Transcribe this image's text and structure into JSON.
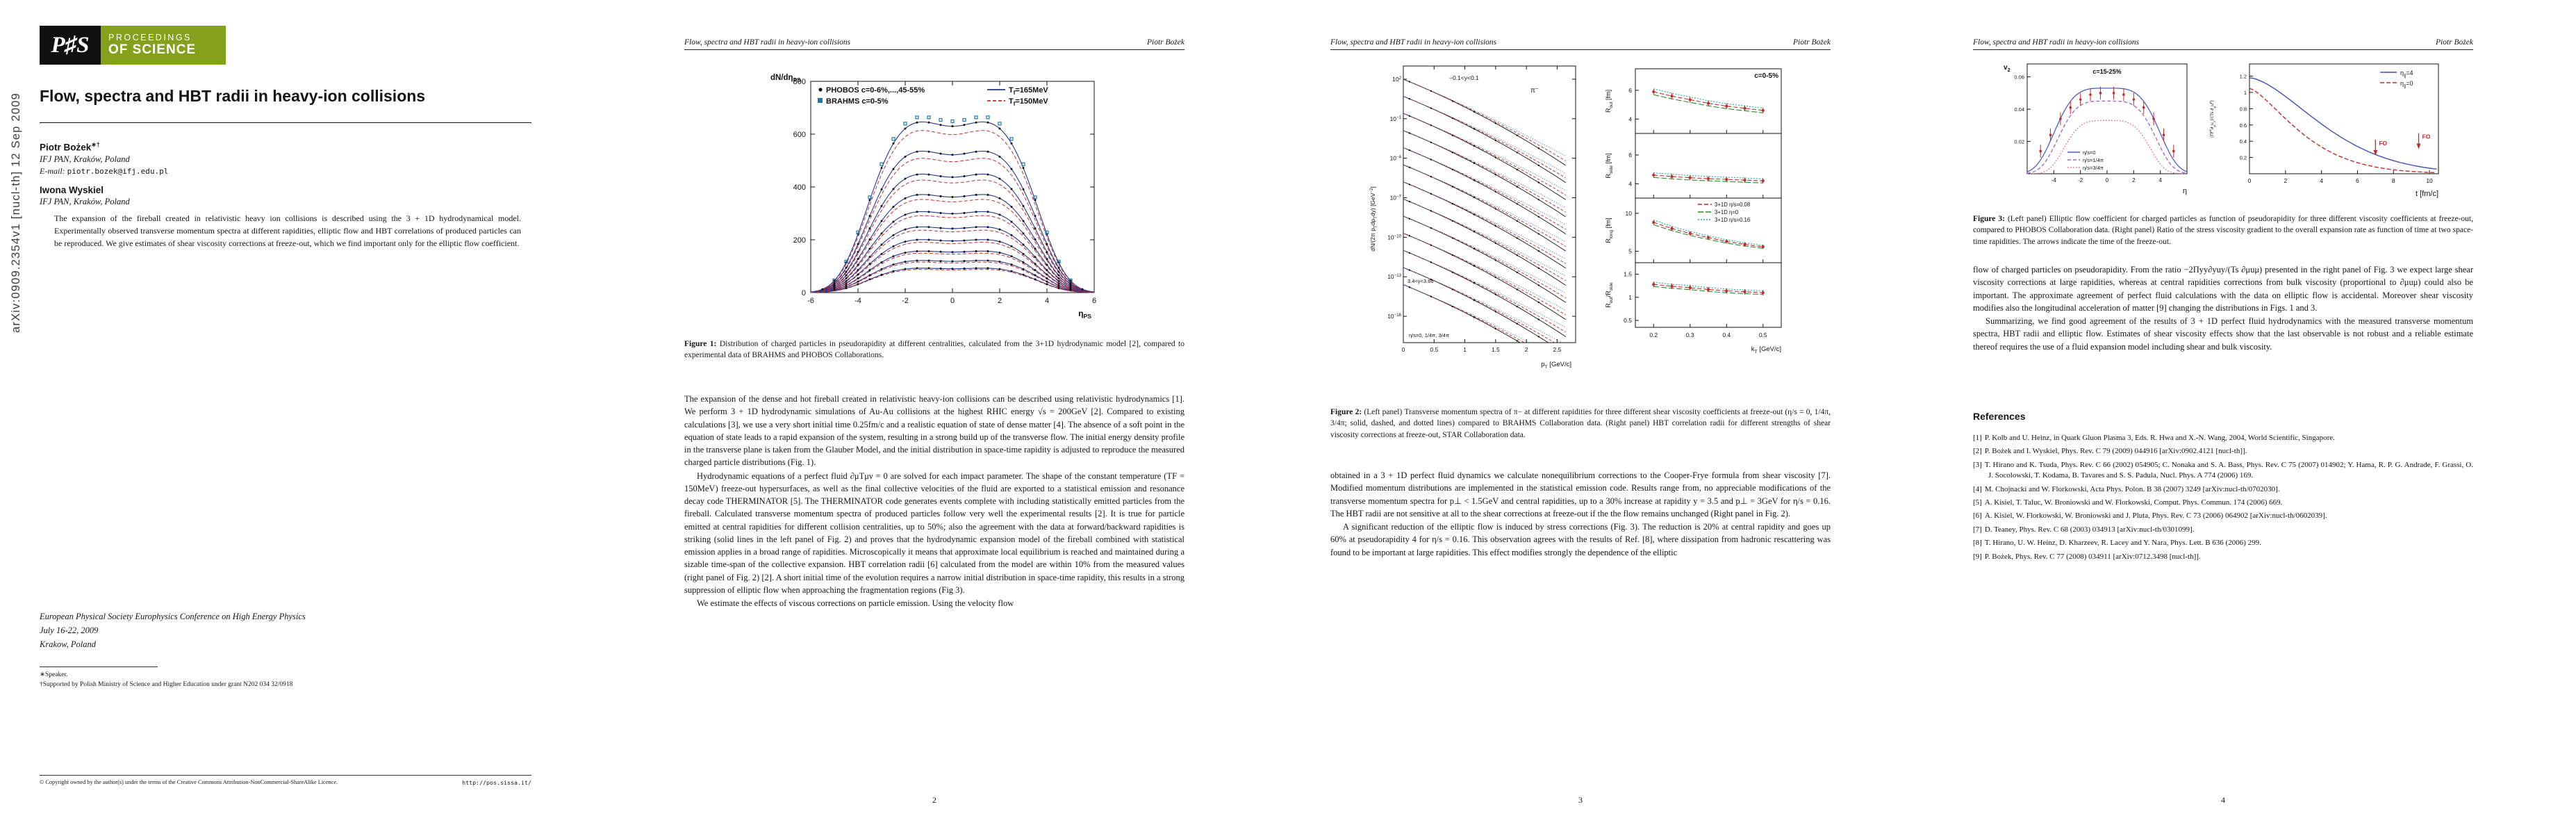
{
  "logo": {
    "mark": "P♯S",
    "line1": "PROCEEDINGS",
    "line2": "OF SCIENCE"
  },
  "running_head": {
    "title": "Flow, spectra and HBT radii in heavy-ion collisions",
    "author": "Piotr Bożek"
  },
  "page1": {
    "arxiv_stamp": "arXiv:0909.2354v1  [nucl-th]  12 Sep 2009",
    "title": "Flow, spectra and HBT radii in heavy-ion collisions",
    "authors": [
      {
        "name": "Piotr Bożek",
        "marks": "∗†",
        "affiliation": "IFJ PAN, Kraków, Poland",
        "email_label": "E-mail:",
        "email": "piotr.bozek@ifj.edu.pl"
      },
      {
        "name": "Iwona Wyskiel",
        "marks": "",
        "affiliation": "IFJ PAN, Kraków, Poland"
      }
    ],
    "abstract": "The expansion of the fireball created in relativistic heavy ion collisions is described using the 3 + 1D hydrodynamical model. Experimentally observed transverse momentum spectra at different rapidities, elliptic flow and HBT correlations of produced particles can be reproduced. We give estimates of shear viscosity corrections at freeze-out, which we find important only for the elliptic flow coefficient.",
    "conference": {
      "name": "European Physical Society Europhysics Conference on High Energy Physics",
      "dates": "July 16-22, 2009",
      "place": "Krakow, Poland"
    },
    "footnotes": [
      "∗Speaker.",
      "†Supported by Polish Ministry of Science and Higher Education under grant N202 034 32/0918"
    ],
    "footer": {
      "copyright": "© Copyright owned by the author(s) under the terms of the Creative Commons Attribution-NonCommercial-ShareAlike Licence.",
      "url": "http://pos.sissa.it/"
    }
  },
  "page2": {
    "figure_caption_label": "Figure 1:",
    "figure_caption": " Distribution of charged particles in pseudorapidity at different centralities, calculated from the 3+1D hydrodynamic model [2], compared to experimental data of BRAHMS and PHOBOS Collaborations.",
    "paragraphs": [
      "The expansion of the dense and hot fireball created in relativistic heavy-ion collisions can be described using relativistic hydrodynamics [1]. We perform 3 + 1D hydrodynamic simulations of Au-Au collisions at the highest RHIC energy √s = 200GeV [2]. Compared to existing calculations [3], we use a very short initial time 0.25fm/c and a realistic equation of state of dense matter [4]. The absence of a soft point in the equation of state leads to a rapid expansion of the system, resulting in a strong build up of the transverse flow. The initial energy density profile in the transverse plane is taken from the Glauber Model, and the initial distribution in space-time rapidity is adjusted to reproduce the measured charged particle distributions (Fig. 1).",
      "Hydrodynamic equations of a perfect fluid ∂μTμν = 0 are solved for each impact parameter. The shape of the constant temperature (TF = 150MeV) freeze-out hypersurfaces, as well as the final collective velocities of the fluid are exported to a statistical emission and resonance decay code THERMINATOR [5]. The THERMINATOR code generates events complete with including statistically emitted particles from the fireball. Calculated transverse momentum spectra of produced particles follow very well the experimental results [2]. It is true for particle emitted at central rapidities for different collision centralities, up to 50%; also the agreement with the data at forward/backward rapidities is striking (solid lines in the left panel of Fig. 2) and proves that the hydrodynamic expansion model of the fireball combined with statistical emission applies in a broad range of rapidities. Microscopically it means that approximate local equilibrium is reached and maintained during a sizable time-span of the collective expansion. HBT correlation radii [6] calculated from the model are within 10% from the measured values (right panel of Fig. 2) [2]. A short initial time of the evolution requires a narrow initial distribution in space-time rapidity, this results in a strong suppression of elliptic flow when approaching the fragmentation regions (Fig 3).",
      "We estimate the effects of viscous corrections on particle emission. Using the velocity flow"
    ],
    "page_number": "2"
  },
  "page3": {
    "figure_caption_label": "Figure 2:",
    "figure_caption": " (Left panel) Transverse momentum spectra of π− at different rapidities for three different shear viscosity coefficients at freeze-out (η/s = 0, 1/4π, 3/4π; solid, dashed, and dotted lines) compared to BRAHMS Collaboration data. (Right panel) HBT correlation radii for different strengths of shear viscosity corrections at freeze-out, STAR Collaboration data.",
    "paragraphs": [
      "obtained in a 3 + 1D perfect fluid dynamics we calculate nonequilibrium corrections to the Cooper-Frye formula from shear viscosity [7]. Modified momentum distributions are implemented in the statistical emission code. Results range from, no appreciable modifications of the transverse momentum spectra for p⊥ < 1.5GeV and central rapidities, up to a 30% increase at rapidity y = 3.5 and p⊥ = 3GeV for η/s = 0.16. The HBT radii are not sensitive at all to the shear corrections at freeze-out if the the flow remains unchanged (Right panel in Fig. 2).",
      "A significant reduction of the elliptic flow is induced by stress corrections (Fig. 3). The reduction is 20% at central rapidity and goes up 60% at pseudorapidity 4 for η/s = 0.16. This observation agrees with the results of Ref. [8], where dissipation from hadronic rescattering was found to be important at large rapidities. This effect modifies strongly the dependence of the elliptic"
    ],
    "page_number": "3"
  },
  "page4": {
    "figure_caption_label": "Figure 3:",
    "figure_caption": " (Left panel) Elliptic flow coefficient for charged particles as function of pseudorapidity for three different viscosity coefficients at freeze-out, compared to PHOBOS Collaboration data. (Right panel) Ratio of the stress viscosity gradient to the overall expansion rate as function of time at two space-time rapidities. The arrows indicate the time of the freeze-out.",
    "paragraphs": [
      "flow of charged particles on pseudorapidity. From the ratio −2Πyy∂yuy/(Ts ∂μuμ) presented in the right panel of Fig. 3 we expect large shear viscosity corrections at large rapidities, whereas at central rapidities corrections from bulk viscosity (proportional to ∂μuμ) could also be important. The approximate agreement of perfect fluid calculations with the data on elliptic flow is accidental. Moreover shear viscosity modifies also the longitudinal acceleration of matter [9] changing the distributions in Figs. 1 and 3.",
      "Summarizing, we find good agreement of the results of 3 + 1D perfect fluid hydrodynamics with the measured transverse momentum spectra, HBT radii and elliptic flow. Estimates of shear viscosity effects show that the last observable is not robust and a reliable estimate thereof requires the use of a fluid expansion model including shear and bulk viscosity."
    ],
    "references_heading": "References",
    "references": [
      {
        "label": "[1]",
        "text": "P. Kolb and U. Heinz, in Quark Gluon Plasma 3, Eds. R. Hwa and X.-N. Wang, 2004, World Scientific, Singapore."
      },
      {
        "label": "[2]",
        "text": "P. Bożek and I. Wyskiel, Phys. Rev. C 79 (2009) 044916 [arXiv:0902.4121 [nucl-th]]."
      },
      {
        "label": "[3]",
        "text": "T. Hirano and K. Tsuda, Phys. Rev. C 66 (2002) 054905; C. Nonaka and S. A. Bass, Phys. Rev. C 75 (2007) 014902; Y. Hama, R. P. G. Andrade, F. Grassi, O. J. Socolowski, T. Kodama, B. Tavares and S. S. Padula, Nucl. Phys. A 774 (2006) 169."
      },
      {
        "label": "[4]",
        "text": "M. Chojnacki and W. Florkowski, Acta Phys. Polon. B 38 (2007) 3249 [arXiv:nucl-th/0702030]."
      },
      {
        "label": "[5]",
        "text": "A. Kisiel, T. Taluc, W. Broniowski and W. Florkowski, Comput. Phys. Commun. 174 (2006) 669."
      },
      {
        "label": "[6]",
        "text": "A. Kisiel, W. Florkowski, W. Broniowski and J. Pluta, Phys. Rev. C 73 (2006) 064902 [arXiv:nucl-th/0602039]."
      },
      {
        "label": "[7]",
        "text": "D. Teaney, Phys. Rev. C 68 (2003) 034913 [arXiv:nucl-th/0301099]."
      },
      {
        "label": "[8]",
        "text": "T. Hirano, U. W. Heinz, D. Kharzeev, R. Lacey and Y. Nara, Phys. Lett. B 636 (2006) 299."
      },
      {
        "label": "[9]",
        "text": "P. Bożek, Phys. Rev. C 77 (2008) 034911 [arXiv:0712.3498 [nucl-th]]."
      }
    ],
    "page_number": "4"
  },
  "chart_data": {
    "fig1": {
      "type": "line",
      "legend": [
        "PHOBOS c=0-6%,...,45-55%",
        "BRAHMS c=0-5%",
        "T_(f)=165MeV",
        "T_(f)=150MeV"
      ],
      "ylabel": "dN/dη_(PS)",
      "xlabel": "η_(PS)",
      "xlim": [
        -6,
        6
      ],
      "ylim": [
        0,
        800
      ],
      "xticks": [
        -6,
        -4,
        -2,
        0,
        2,
        4,
        6
      ],
      "yticks": [
        0,
        200,
        400,
        600,
        800
      ],
      "centrality_peaks": [
        670,
        555,
        465,
        385,
        318,
        258,
        208,
        163,
        126,
        96
      ],
      "width_param": 3.9
    },
    "fig2_spectra": {
      "type": "line-log",
      "ylabel": "dN/(2π p_(T)dp_(T)dy) [GeV^(−2)]",
      "xlabel": "p_(T) [GeV/c]",
      "xticks": [
        0,
        0.5,
        1,
        1.5,
        2,
        2.5
      ],
      "ytick_exponents": [
        2,
        -1,
        -4,
        -7,
        -10,
        -13,
        -16
      ],
      "n_rapidity_bins": 13,
      "top_intercept_exp": 2,
      "step_exp": -1.3,
      "slope": [
        -1.9,
        -0.22
      ],
      "annotations": [
        "−0.1<y<0.1",
        "π^(−)",
        "3.4<y<3.66",
        "η/s=0, 1/4π, 3/4π"
      ]
    },
    "fig2_hbt": {
      "type": "line+scatter",
      "corner_label": "c=0-5%",
      "xlabel": "k_(T) [GeV/c]",
      "xticks": [
        0.2,
        0.3,
        0.4,
        0.5
      ],
      "legend": [
        "3+1D η/s=0.08",
        "3+1D η=0",
        "3+1D η/s=0.16"
      ],
      "x": [
        0.2,
        0.25,
        0.3,
        0.35,
        0.4,
        0.45,
        0.5
      ],
      "panels": [
        {
          "label": "R_(out)  [fm]",
          "yticks": [
            4,
            6
          ],
          "ylim": [
            3,
            7.5
          ],
          "data": [
            5.9,
            5.6,
            5.35,
            5.1,
            4.9,
            4.75,
            4.6
          ],
          "err": 0.2
        },
        {
          "label": "R_(side)  [fm]",
          "yticks": [
            4,
            6
          ],
          "ylim": [
            3,
            7.5
          ],
          "data": [
            4.6,
            4.5,
            4.42,
            4.35,
            4.3,
            4.25,
            4.2
          ],
          "err": 0.18
        },
        {
          "label": "R_(long)  [fm]",
          "yticks": [
            5,
            10
          ],
          "ylim": [
            3.5,
            12
          ],
          "data": [
            8.8,
            8.0,
            7.35,
            6.8,
            6.3,
            5.9,
            5.6
          ],
          "err": 0.3
        },
        {
          "label": "R_(out)/R_(side)",
          "yticks": [
            0.5,
            1,
            1.5
          ],
          "ylim": [
            0.35,
            1.75
          ],
          "data": [
            1.28,
            1.24,
            1.21,
            1.17,
            1.14,
            1.12,
            1.1
          ],
          "err": 0.06
        }
      ]
    },
    "fig3_v2": {
      "type": "line+scatter",
      "ylabel": "v_(2)",
      "xlabel": "η",
      "corner_label": "c=15-25%",
      "xlim": [
        -6,
        6
      ],
      "ylim": [
        0,
        0.068
      ],
      "xticks": [
        -4,
        -2,
        0,
        2,
        4
      ],
      "yticks": [
        0.02,
        0.04,
        0.06
      ],
      "legend": [
        "η/s=0",
        "η/s=1/4π",
        "η/s=3/4π"
      ],
      "curves": [
        {
          "peak": 0.053,
          "width": 4.3
        },
        {
          "peak": 0.045,
          "width": 4.0
        },
        {
          "peak": 0.033,
          "width": 3.5
        }
      ],
      "data_x": [
        -5,
        -4.25,
        -3.5,
        -2.75,
        -2,
        -1.25,
        -0.5,
        0.5,
        1.25,
        2,
        2.75,
        3.5,
        4.25,
        5
      ],
      "data_y": [
        0.014,
        0.024,
        0.034,
        0.041,
        0.046,
        0.049,
        0.05,
        0.05,
        0.049,
        0.046,
        0.041,
        0.034,
        0.024,
        0.014
      ],
      "err": 0.004
    },
    "fig3_ratio": {
      "type": "line",
      "xlabel": "t  [fm/c]",
      "ylabel": "⟨Π^(μν)∂_(μ)u_(ν)⟩/⟨Ts ∂_(μ)u^(μ)⟩",
      "xlim": [
        0,
        10.5
      ],
      "ylim": [
        0,
        1.35
      ],
      "xticks": [
        0,
        2,
        4,
        6,
        8,
        10
      ],
      "yticks": [
        0.2,
        0.4,
        0.6,
        0.8,
        1,
        1.2
      ],
      "legend": [
        "η_(∥)=4",
        "η_(∥)=0"
      ],
      "curves": [
        {
          "amp": 1.18,
          "tau": 5.2,
          "pow": 1.6
        },
        {
          "amp": 1.05,
          "tau": 3.6,
          "pow": 1.4
        }
      ],
      "fo_arrows": [
        {
          "t": 7.0,
          "y": 0.42,
          "label": "FO"
        },
        {
          "t": 9.4,
          "y": 0.5,
          "label": "FO"
        }
      ]
    }
  }
}
